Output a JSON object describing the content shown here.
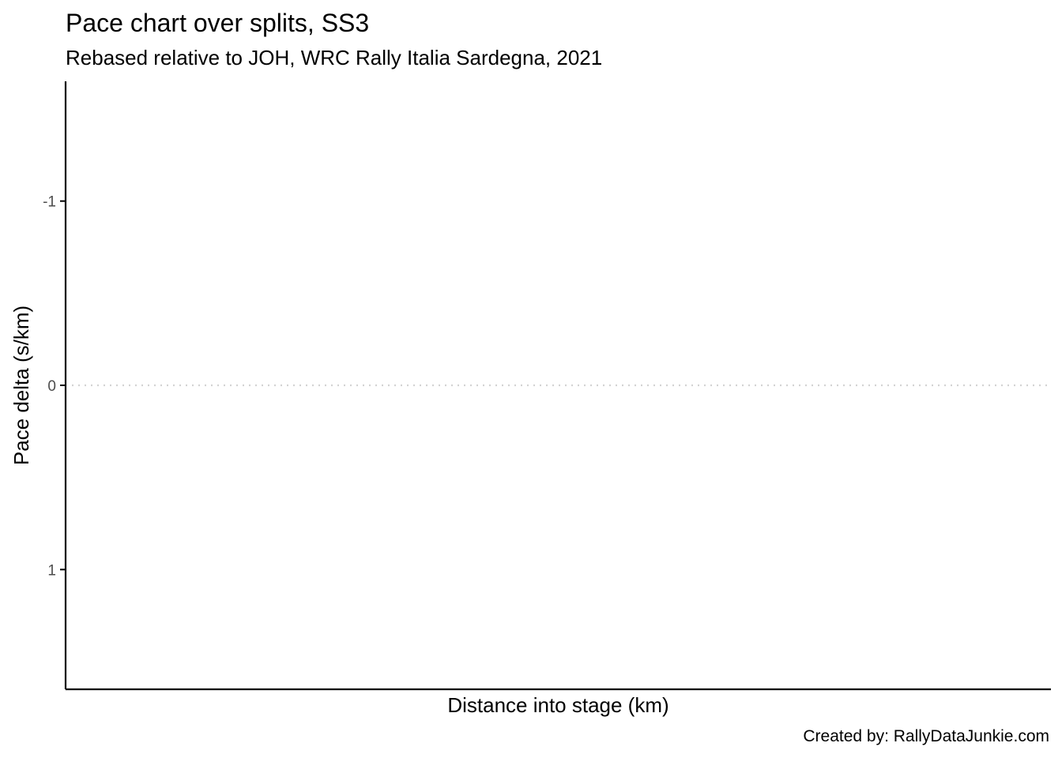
{
  "title": "Pace chart over splits, SS3",
  "subtitle": "Rebased relative to JOH, WRC Rally Italia Sardegna, 2021",
  "caption": "Created by: RallyDataJunkie.com",
  "chart_data": {
    "type": "line",
    "title": "Pace chart over splits, SS3",
    "subtitle": "Rebased relative to JOH, WRC Rally Italia Sardegna, 2021",
    "xlabel": "Distance into stage (km)",
    "ylabel": "Pace delta (s/km)",
    "y_reversed": true,
    "ylim": [
      -1.65,
      1.65
    ],
    "y_ticks": [
      {
        "value": -1,
        "label": "-1"
      },
      {
        "value": 0,
        "label": "0"
      },
      {
        "value": 1,
        "label": "1"
      }
    ],
    "reference_line": {
      "y": 0,
      "style": "dotted",
      "color": "#d3d3d3"
    },
    "series": [],
    "grid": false,
    "colors": {
      "axis": "#000000",
      "tick_label": "#4d4d4d",
      "reference_line": "#d3d3d3"
    }
  }
}
